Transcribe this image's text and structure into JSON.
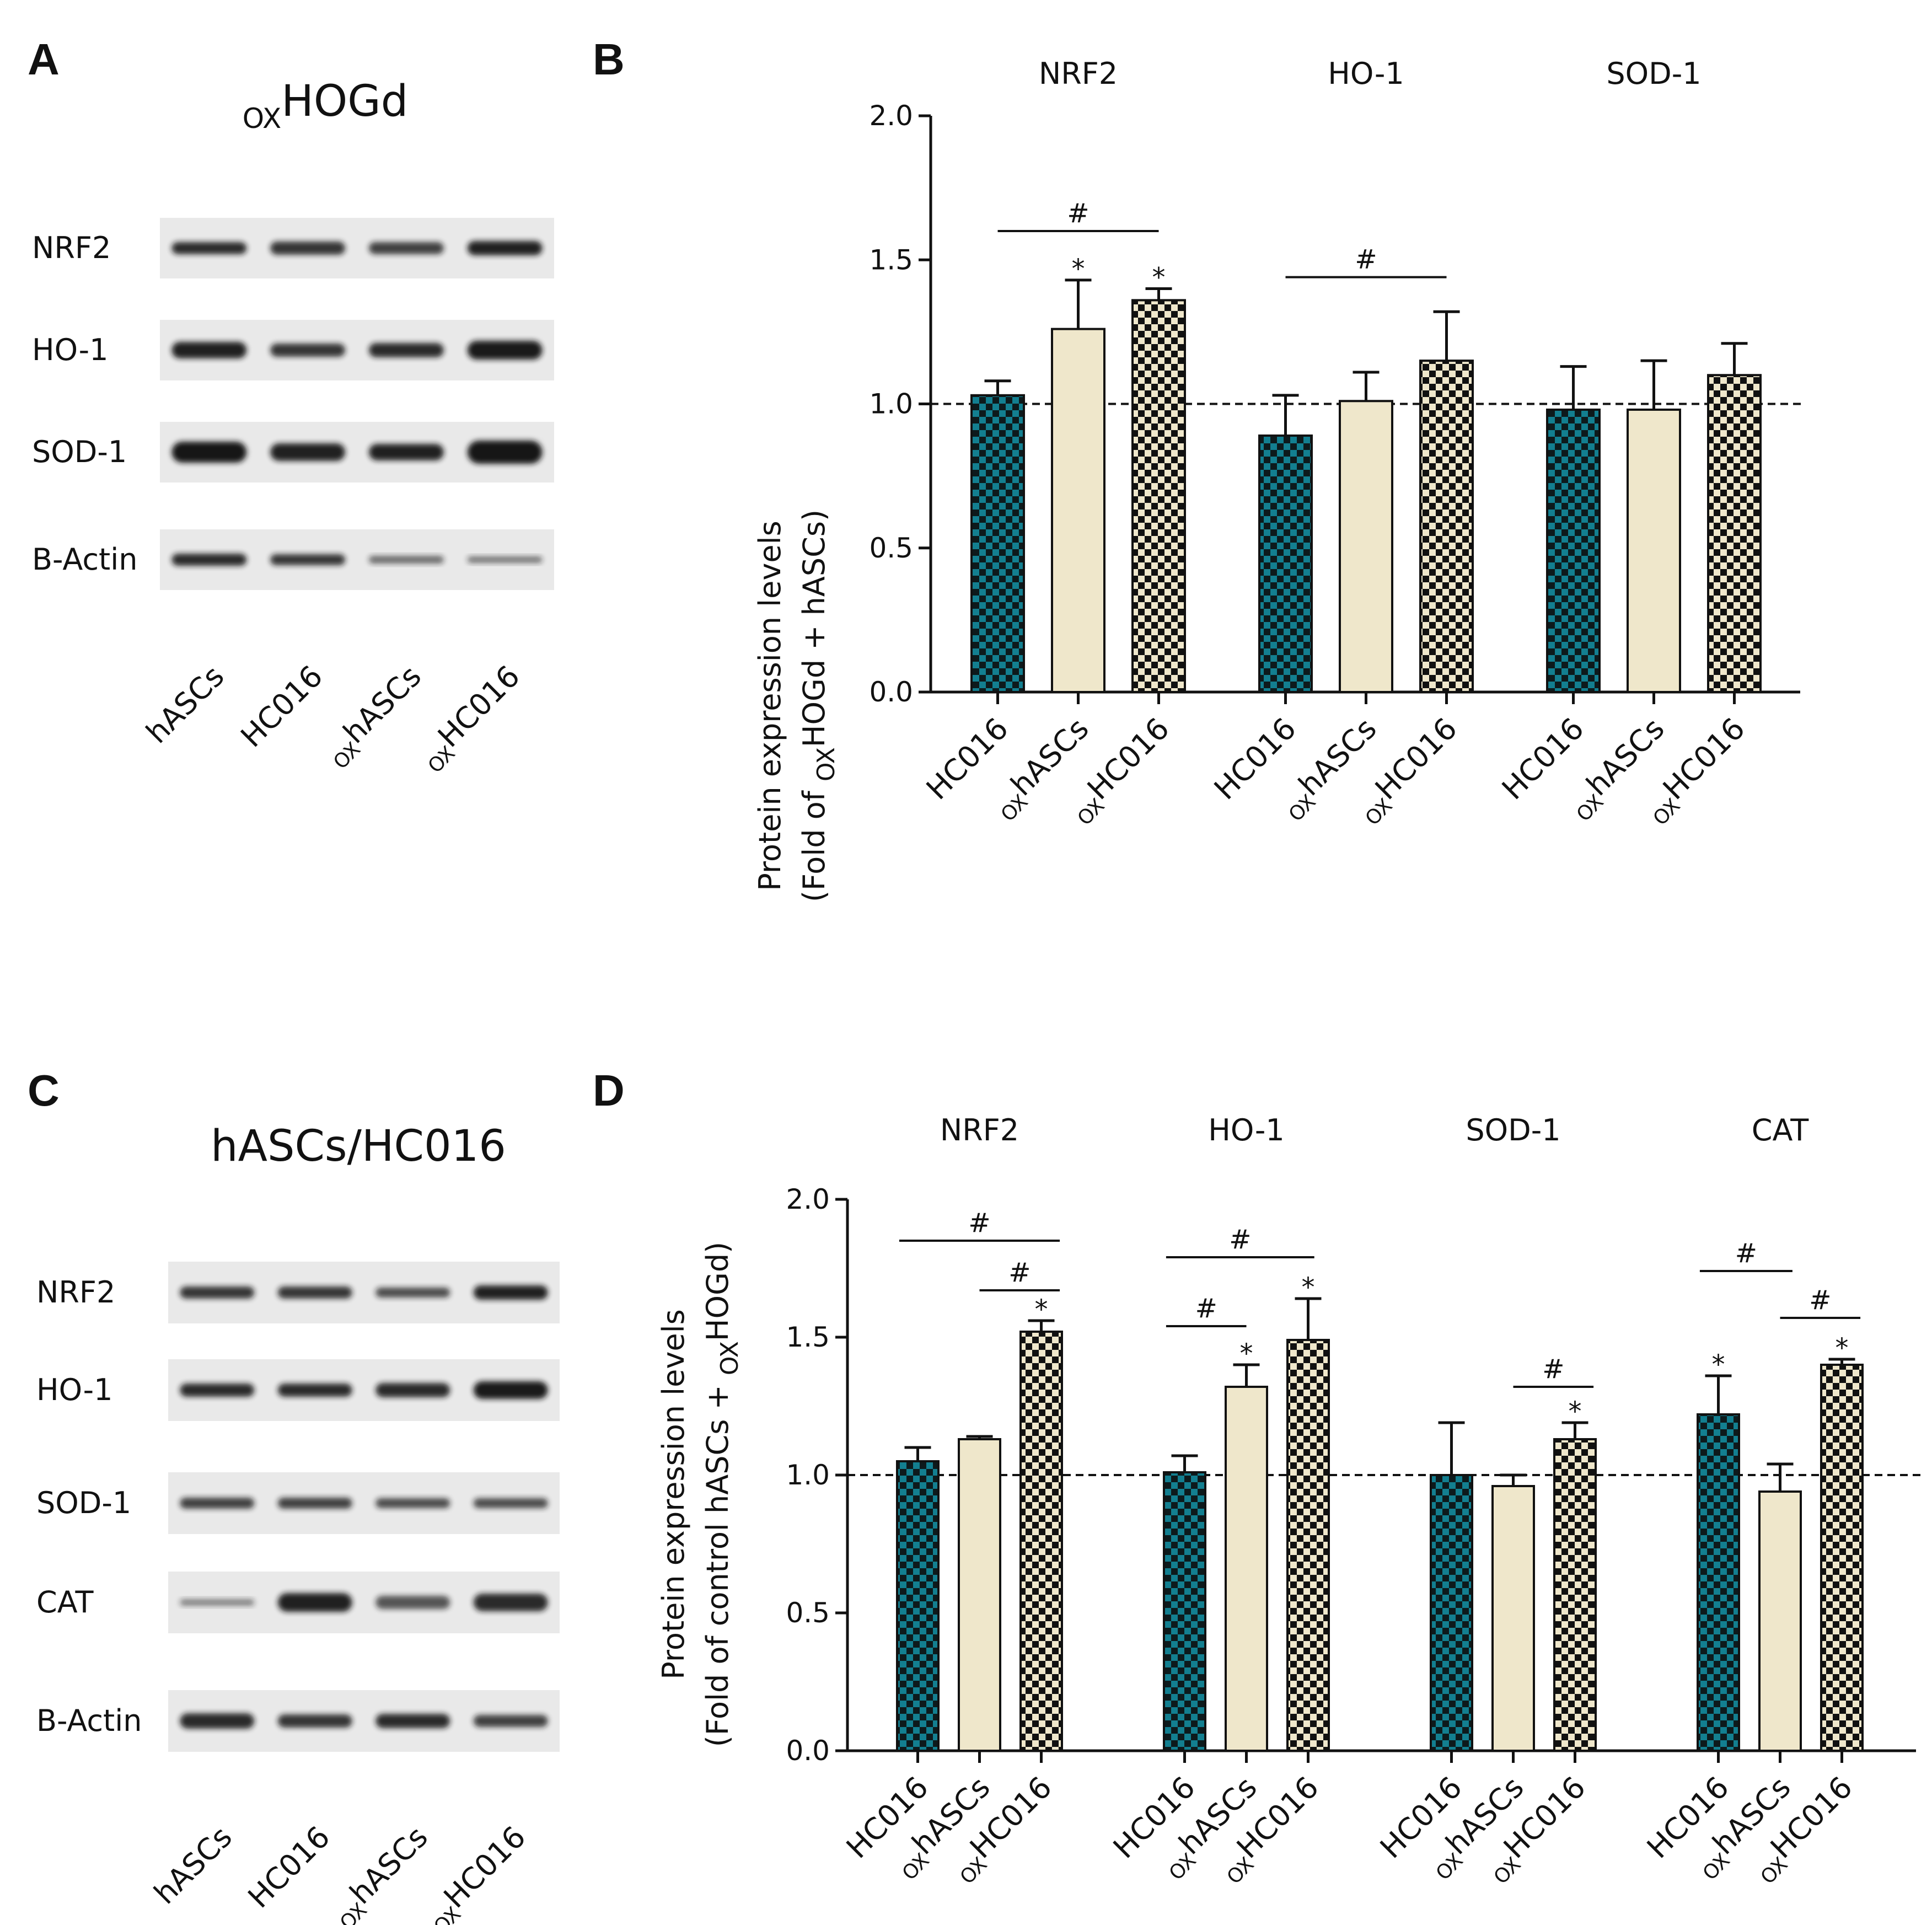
{
  "panels": {
    "A": {
      "letter": "A",
      "title_sub": "OX",
      "title_main": "HOGd",
      "bands": [
        "NRF2",
        "HO-1",
        "SOD-1",
        "B-Actin"
      ],
      "lanes": [
        {
          "sub": "",
          "main": "hASCs"
        },
        {
          "sub": "",
          "main": "HC016"
        },
        {
          "sub": "OX",
          "main": "hASCs"
        },
        {
          "sub": "OX",
          "main": "HC016"
        }
      ]
    },
    "C": {
      "letter": "C",
      "title_main": "hASCs/HC016",
      "bands": [
        "NRF2",
        "HO-1",
        "SOD-1",
        "CAT",
        "B-Actin"
      ],
      "lanes": [
        {
          "sub": "",
          "main": "hASCs"
        },
        {
          "sub": "",
          "main": "HC016"
        },
        {
          "sub": "OX",
          "main": "hASCs"
        },
        {
          "sub": "OX",
          "main": "HC016"
        }
      ]
    }
  },
  "colors": {
    "teal": "#137f90",
    "cream": "#efe7cb",
    "dark": "#111111",
    "blot_bg": "#e9e9e9"
  },
  "chart_data": [
    {
      "panel": "B",
      "letter": "B",
      "type": "bar",
      "ylabel_line1": "Protein expression levels",
      "ylabel_line2_pre": "(Fold of ",
      "ylabel_line2_sub": "OX",
      "ylabel_line2_post": "HOGd + hASCs)",
      "ylim": [
        0,
        2.0
      ],
      "yticks": [
        "0.0",
        "0.5",
        "1.0",
        "1.5",
        "2.0"
      ],
      "reference_line": 1.0,
      "categories": [
        {
          "sub": "",
          "main": "HC016"
        },
        {
          "sub": "OX",
          "main": "hASCs"
        },
        {
          "sub": "OX",
          "main": "HC016"
        }
      ],
      "groups": [
        {
          "name": "NRF2",
          "values": [
            1.03,
            1.26,
            1.36
          ],
          "errors": [
            0.05,
            0.17,
            0.04
          ],
          "stars": [
            false,
            true,
            true
          ]
        },
        {
          "name": "HO-1",
          "values": [
            0.89,
            1.01,
            1.15
          ],
          "errors": [
            0.14,
            0.1,
            0.17
          ],
          "stars": [
            false,
            false,
            false
          ]
        },
        {
          "name": "SOD-1",
          "values": [
            0.98,
            0.98,
            1.1
          ],
          "errors": [
            0.15,
            0.17,
            0.11
          ],
          "stars": [
            false,
            false,
            false
          ]
        }
      ],
      "brackets": [
        {
          "group": 0,
          "from": 0,
          "to": 2,
          "y": 1.6,
          "label": "#"
        },
        {
          "group": 1,
          "from": 0,
          "to": 2,
          "y": 1.44,
          "label": "#"
        }
      ],
      "star_label": "*"
    },
    {
      "panel": "D",
      "letter": "D",
      "type": "bar",
      "ylabel_line1": "Protein expression levels",
      "ylabel_line2_pre": "(Fold of control hASCs + ",
      "ylabel_line2_sub": "OX",
      "ylabel_line2_post": "HOGd)",
      "ylim": [
        0,
        2.0
      ],
      "yticks": [
        "0.0",
        "0.5",
        "1.0",
        "1.5",
        "2.0"
      ],
      "reference_line": 1.0,
      "categories": [
        {
          "sub": "",
          "main": "HC016"
        },
        {
          "sub": "OX",
          "main": "hASCs"
        },
        {
          "sub": "OX",
          "main": "HC016"
        }
      ],
      "groups": [
        {
          "name": "NRF2",
          "values": [
            1.05,
            1.13,
            1.52
          ],
          "errors": [
            0.05,
            0.01,
            0.04
          ],
          "stars": [
            false,
            false,
            true
          ]
        },
        {
          "name": "HO-1",
          "values": [
            1.01,
            1.32,
            1.49
          ],
          "errors": [
            0.06,
            0.08,
            0.15
          ],
          "stars": [
            false,
            true,
            true
          ]
        },
        {
          "name": "SOD-1",
          "values": [
            1.0,
            0.96,
            1.13
          ],
          "errors": [
            0.19,
            0.04,
            0.06
          ],
          "stars": [
            false,
            false,
            true
          ]
        },
        {
          "name": "CAT",
          "values": [
            1.22,
            0.94,
            1.4
          ],
          "errors": [
            0.14,
            0.1,
            0.02
          ],
          "stars": [
            true,
            false,
            true
          ]
        }
      ],
      "brackets": [
        {
          "group": 0,
          "from": -0.3,
          "to": 2.3,
          "y": 1.85,
          "label": "#"
        },
        {
          "group": 0,
          "from": 1,
          "to": 2.3,
          "y": 1.67,
          "label": "#"
        },
        {
          "group": 1,
          "from": -0.3,
          "to": 2.1,
          "y": 1.79,
          "label": "#"
        },
        {
          "group": 1,
          "from": -0.3,
          "to": 1.0,
          "y": 1.54,
          "label": "#"
        },
        {
          "group": 2,
          "from": 1,
          "to": 2.3,
          "y": 1.32,
          "label": "#"
        },
        {
          "group": 3,
          "from": -0.3,
          "to": 1.2,
          "y": 1.74,
          "label": "#"
        },
        {
          "group": 3,
          "from": 1,
          "to": 2.3,
          "y": 1.57,
          "label": "#"
        }
      ],
      "star_label": "*"
    }
  ]
}
